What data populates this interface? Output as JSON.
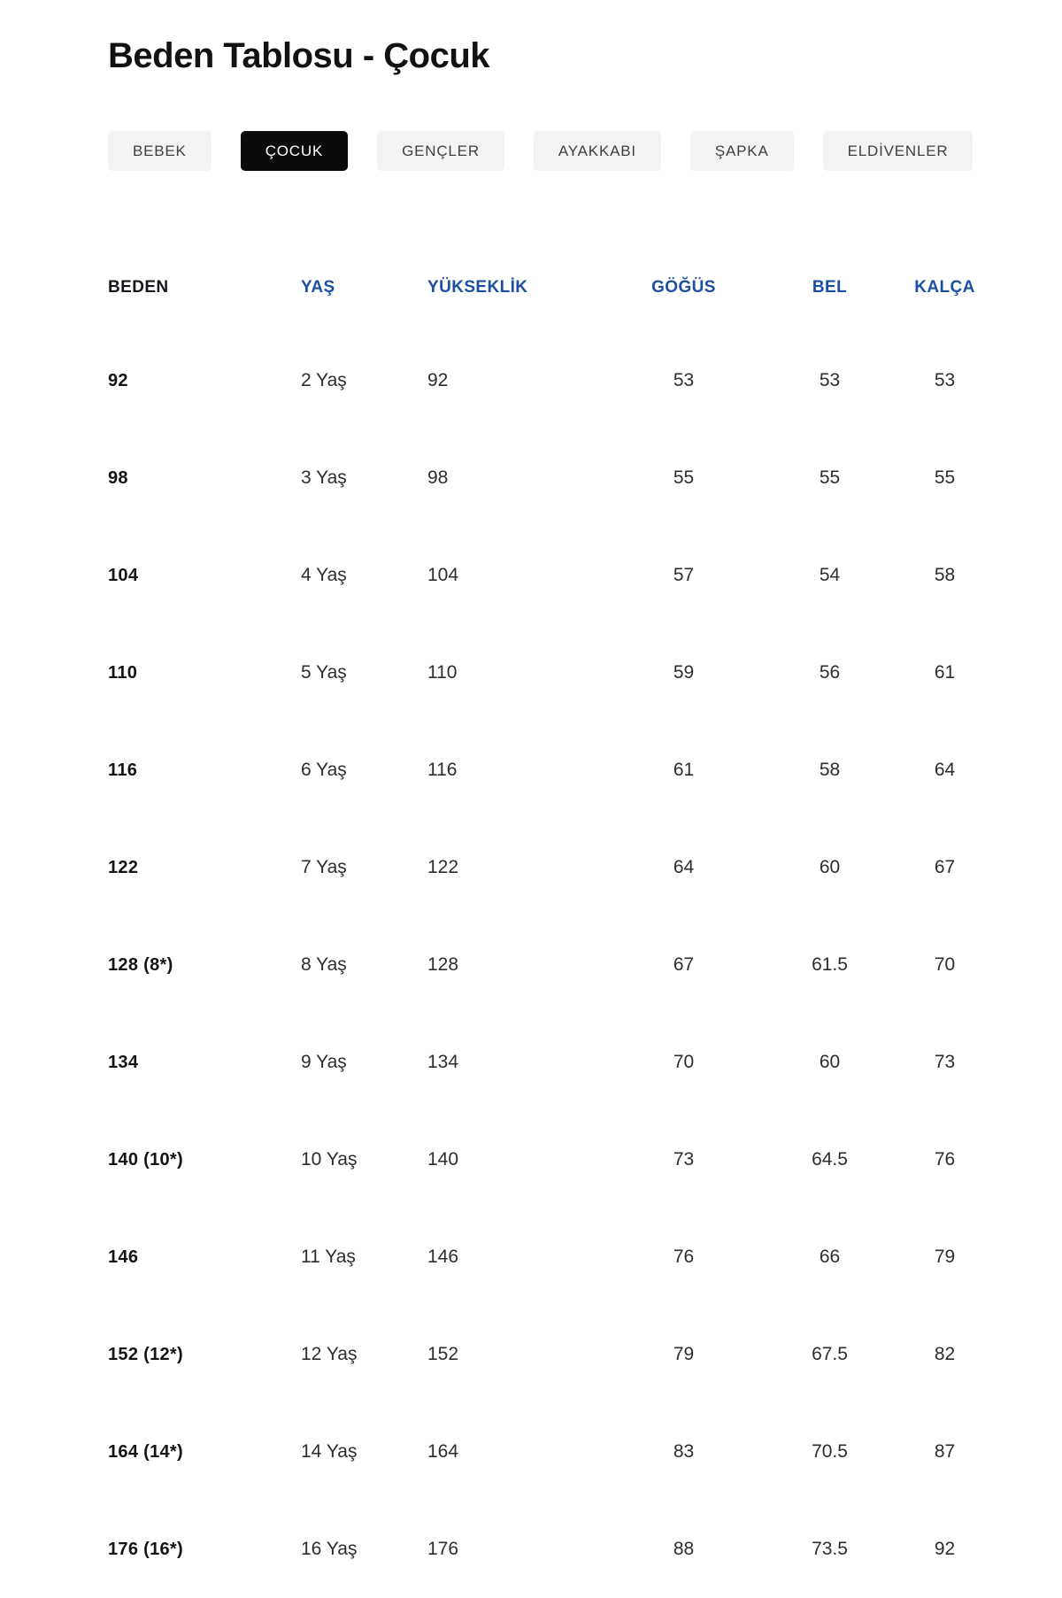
{
  "page": {
    "title": "Beden Tablosu - Çocuk"
  },
  "tabs": [
    {
      "id": "bebek",
      "label": "BEBEK",
      "active": false
    },
    {
      "id": "cocuk",
      "label": "ÇOCUK",
      "active": true
    },
    {
      "id": "gencler",
      "label": "GENÇLER",
      "active": false
    },
    {
      "id": "ayakkabi",
      "label": "AYAKKABI",
      "active": false
    },
    {
      "id": "sapka",
      "label": "ŞAPKA",
      "active": false
    },
    {
      "id": "eldivenler",
      "label": "ELDİVENLER",
      "active": false
    }
  ],
  "table": {
    "headers": [
      "BEDEN",
      "YAŞ",
      "YÜKSEKLİK",
      "GÖĞÜS",
      "BEL",
      "KALÇA"
    ],
    "rows": [
      [
        "92",
        "2 Yaş",
        "92",
        "53",
        "53",
        "53"
      ],
      [
        "98",
        "3 Yaş",
        "98",
        "55",
        "55",
        "55"
      ],
      [
        "104",
        "4 Yaş",
        "104",
        "57",
        "54",
        "58"
      ],
      [
        "110",
        "5 Yaş",
        "110",
        "59",
        "56",
        "61"
      ],
      [
        "116",
        "6 Yaş",
        "116",
        "61",
        "58",
        "64"
      ],
      [
        "122",
        "7 Yaş",
        "122",
        "64",
        "60",
        "67"
      ],
      [
        "128 (8*)",
        "8 Yaş",
        "128",
        "67",
        "61.5",
        "70"
      ],
      [
        "134",
        "9 Yaş",
        "134",
        "70",
        "60",
        "73"
      ],
      [
        "140 (10*)",
        "10 Yaş",
        "140",
        "73",
        "64.5",
        "76"
      ],
      [
        "146",
        "11 Yaş",
        "146",
        "76",
        "66",
        "79"
      ],
      [
        "152 (12*)",
        "12 Yaş",
        "152",
        "79",
        "67.5",
        "82"
      ],
      [
        "164 (14*)",
        "14 Yaş",
        "164",
        "83",
        "70.5",
        "87"
      ],
      [
        "176 (16*)",
        "16 Yaş",
        "176",
        "88",
        "73.5",
        "92"
      ]
    ]
  },
  "colors": {
    "accent_blue": "#1d4fa1",
    "active_tab_bg": "#0b0b0b",
    "tab_bg": "#f3f3f3",
    "tab_text": "#404040",
    "body_text": "#2d2d2d",
    "title_text": "#121212"
  }
}
